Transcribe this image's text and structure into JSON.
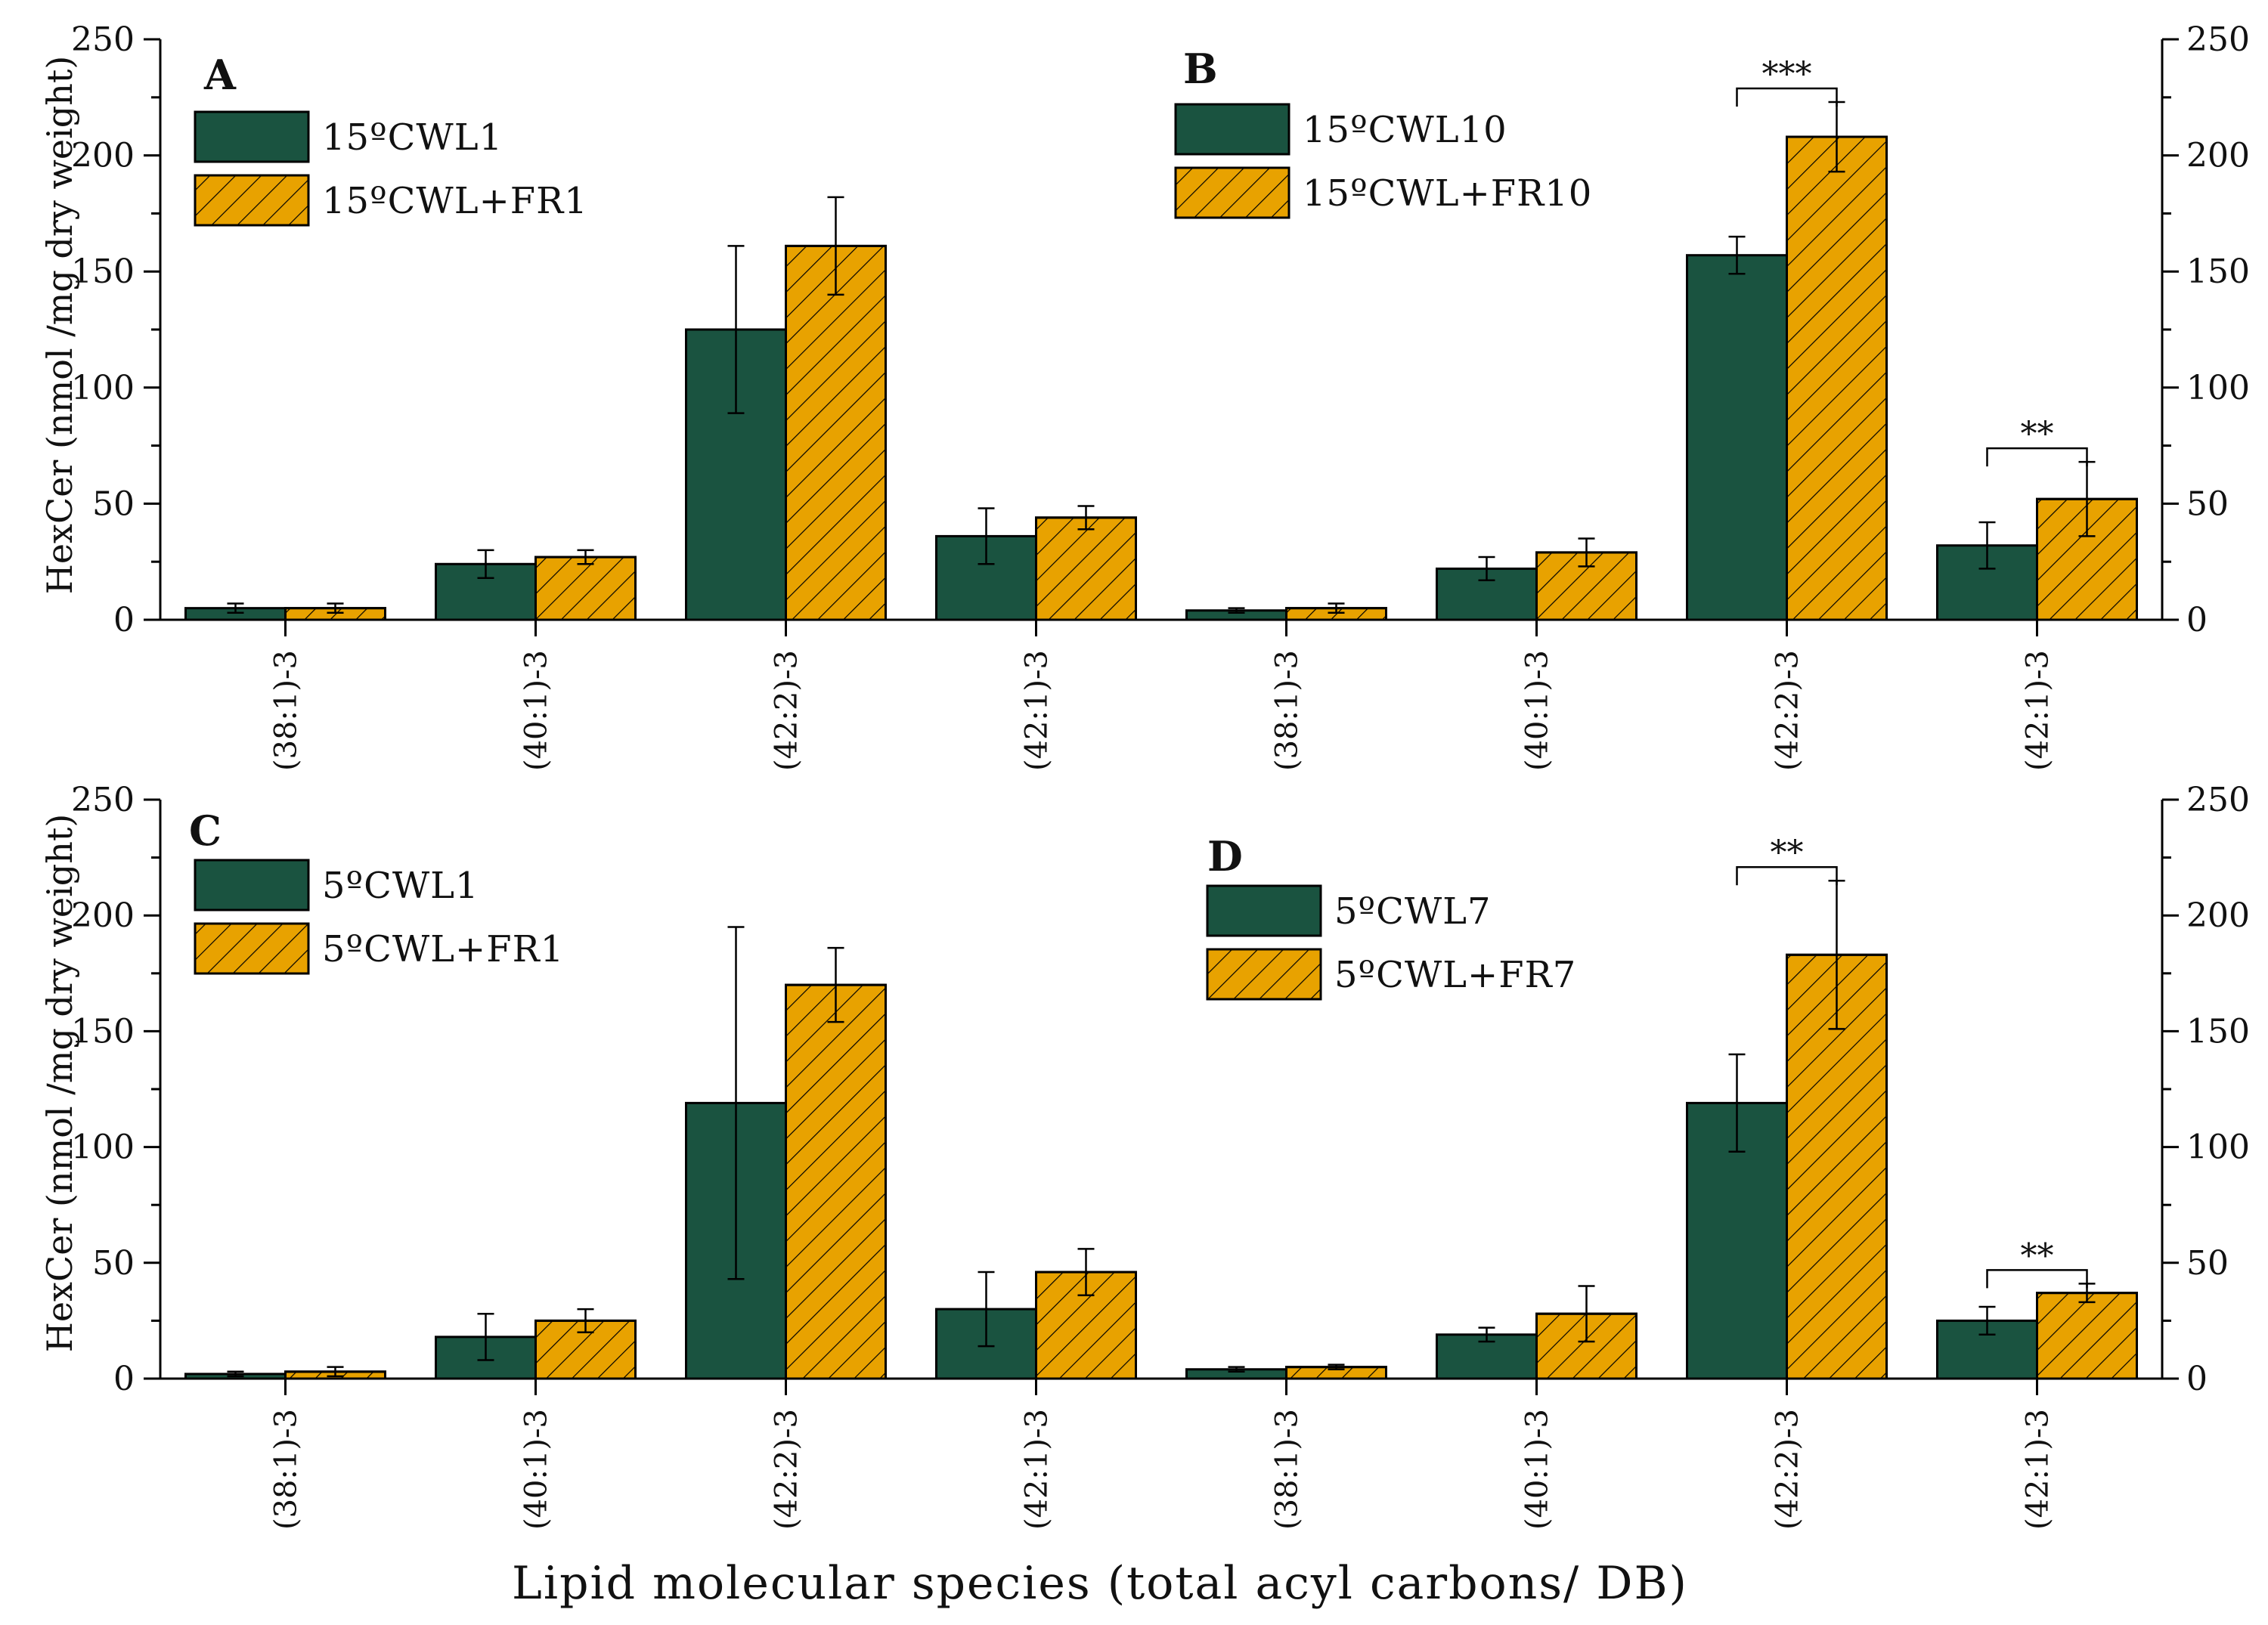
{
  "figure": {
    "y_axis_label": "HexCer (nmol /mg dry weight)",
    "x_axis_label": "Lipid molecular species (total acyl carbons/ DB)",
    "colors": {
      "green": "#1a5340",
      "orange": "#e8a200",
      "hatch": "#000000"
    }
  },
  "chart_data": [
    {
      "type": "bar",
      "row": "top",
      "ylim": [
        0,
        250
      ],
      "yticks": [
        0,
        50,
        100,
        150,
        200,
        250
      ],
      "panels": [
        {
          "letter": "A",
          "categories": [
            "(38:1)-3",
            "(40:1)-3",
            "(42:2)-3",
            "(42:1)-3"
          ],
          "series": [
            {
              "name": "15ºCWL1",
              "color": "green",
              "values": [
                5,
                24,
                125,
                36
              ],
              "errors": [
                2,
                6,
                36,
                12
              ]
            },
            {
              "name": "15ºCWL+FR1",
              "color": "orange",
              "values": [
                5,
                27,
                161,
                44
              ],
              "errors": [
                2,
                3,
                21,
                5
              ]
            }
          ],
          "significance": []
        },
        {
          "letter": "B",
          "categories": [
            "(38:1)-3",
            "(40:1)-3",
            "(42:2)-3",
            "(42:1)-3"
          ],
          "series": [
            {
              "name": "15ºCWL10",
              "color": "green",
              "values": [
                4,
                22,
                157,
                32
              ],
              "errors": [
                1,
                5,
                8,
                10
              ]
            },
            {
              "name": "15ºCWL+FR10",
              "color": "orange",
              "values": [
                5,
                29,
                208,
                52
              ],
              "errors": [
                2,
                6,
                15,
                16
              ]
            }
          ],
          "significance": [
            {
              "category_index": 2,
              "label": "***"
            },
            {
              "category_index": 3,
              "label": "**"
            }
          ]
        }
      ]
    },
    {
      "type": "bar",
      "row": "bottom",
      "ylim": [
        0,
        250
      ],
      "yticks": [
        0,
        50,
        100,
        150,
        200,
        250
      ],
      "panels": [
        {
          "letter": "C",
          "categories": [
            "(38:1)-3",
            "(40:1)-3",
            "(42:2)-3",
            "(42:1)-3"
          ],
          "series": [
            {
              "name": "5ºCWL1",
              "color": "green",
              "values": [
                2,
                18,
                119,
                30
              ],
              "errors": [
                1,
                10,
                76,
                16
              ]
            },
            {
              "name": "5ºCWL+FR1",
              "color": "orange",
              "values": [
                3,
                25,
                170,
                46
              ],
              "errors": [
                2,
                5,
                16,
                10
              ]
            }
          ],
          "significance": []
        },
        {
          "letter": "D",
          "categories": [
            "(38:1)-3",
            "(40:1)-3",
            "(42:2)-3",
            "(42:1)-3"
          ],
          "series": [
            {
              "name": "5ºCWL7",
              "color": "green",
              "values": [
                4,
                19,
                119,
                25
              ],
              "errors": [
                1,
                3,
                21,
                6
              ]
            },
            {
              "name": "5ºCWL+FR7",
              "color": "orange",
              "values": [
                5,
                28,
                183,
                37
              ],
              "errors": [
                1,
                12,
                32,
                4
              ]
            }
          ],
          "significance": [
            {
              "category_index": 2,
              "label": "**"
            },
            {
              "category_index": 3,
              "label": "**"
            }
          ]
        }
      ]
    }
  ]
}
